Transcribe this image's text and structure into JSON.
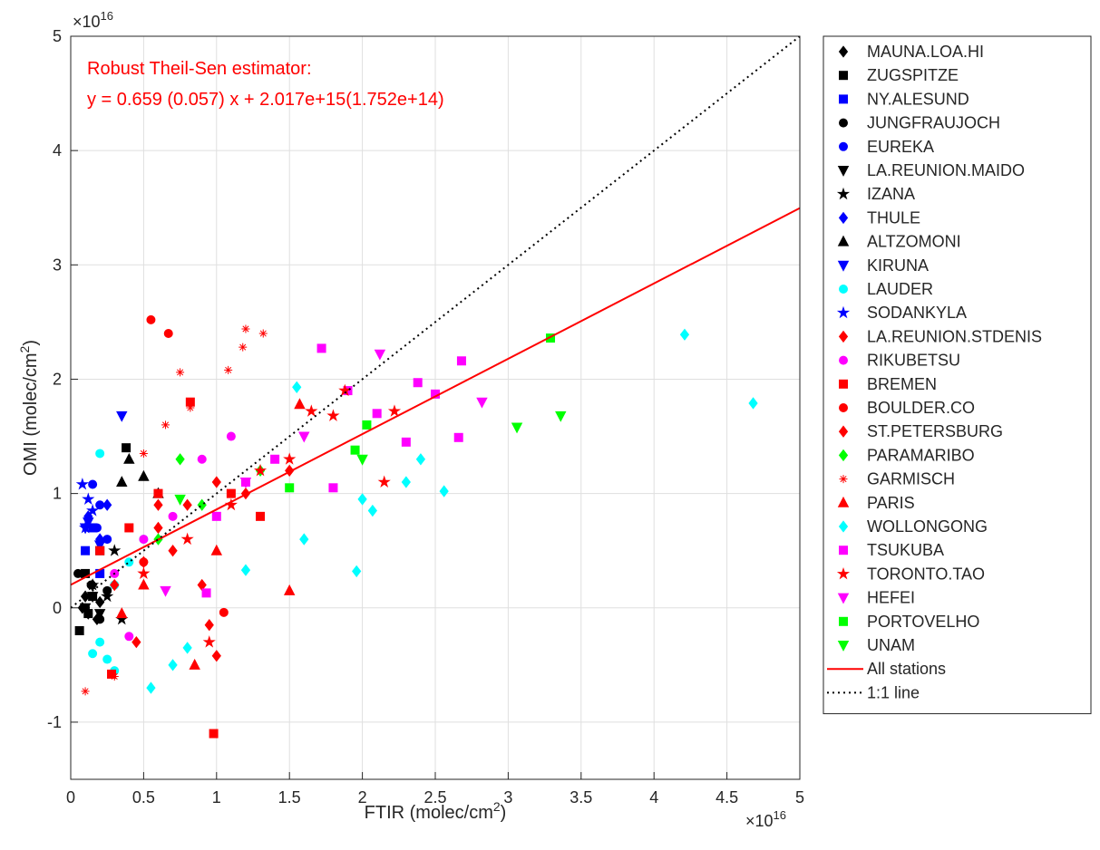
{
  "chart_data": {
    "type": "scatter",
    "xlabel": {
      "text": "FTIR (molec/cm",
      "sup": "2",
      "end": ")"
    },
    "ylabel": {
      "text": "OMI (molec/cm",
      "sup": "2",
      "end": ")"
    },
    "x_multiplier": {
      "base": "×10",
      "exponent": "16"
    },
    "y_multiplier": {
      "base": "×10",
      "exponent": "16"
    },
    "annotations": [
      "Robust Theil-Sen estimator:",
      "y = 0.659 (0.057) x + 2.017e+15(1.752e+14)"
    ],
    "annotation_color": "#ff0000",
    "xlim": [
      0,
      5
    ],
    "ylim": [
      -1.5,
      5
    ],
    "xticks": [
      0,
      0.5,
      1,
      1.5,
      2,
      2.5,
      3,
      3.5,
      4,
      4.5,
      5
    ],
    "yticks": [
      -1,
      0,
      1,
      2,
      3,
      4,
      5
    ],
    "grid": true,
    "legend": "east-outside",
    "series": [
      {
        "name": "MAUNA.LOA.HI",
        "marker": "diamond",
        "color": "#000000",
        "x": [
          0.1,
          0.12,
          0.15,
          0.2,
          0.08,
          0.18
        ],
        "y": [
          0.1,
          -0.05,
          0.2,
          0.05,
          0.0,
          -0.1
        ]
      },
      {
        "name": "ZUGSPITZE",
        "marker": "square",
        "color": "#000000",
        "x": [
          0.06,
          0.1,
          0.15,
          0.2,
          0.38,
          0.12
        ],
        "y": [
          -0.2,
          0.3,
          0.1,
          0.5,
          1.4,
          -0.05
        ]
      },
      {
        "name": "NY.ALESUND",
        "marker": "square",
        "color": "#0000ff",
        "x": [
          0.1,
          0.15,
          0.2
        ],
        "y": [
          0.5,
          0.7,
          0.3
        ]
      },
      {
        "name": "JUNGFRAUJOCH",
        "marker": "circle",
        "color": "#000000",
        "x": [
          0.05,
          0.1,
          0.14,
          0.2,
          0.25
        ],
        "y": [
          0.3,
          0.0,
          0.2,
          -0.1,
          0.15
        ]
      },
      {
        "name": "EUREKA",
        "marker": "circle",
        "color": "#0000ff",
        "x": [
          0.15,
          0.2,
          0.25,
          0.18
        ],
        "y": [
          1.08,
          0.9,
          0.6,
          0.7
        ]
      },
      {
        "name": "LA.REUNION.MAIDO",
        "marker": "triangle-down",
        "color": "#000000",
        "x": [
          0.1,
          0.15,
          0.2
        ],
        "y": [
          0.0,
          0.1,
          -0.05
        ]
      },
      {
        "name": "IZANA",
        "marker": "star",
        "color": "#000000",
        "x": [
          0.15,
          0.25,
          0.3,
          0.35
        ],
        "y": [
          0.2,
          0.1,
          0.5,
          -0.1
        ]
      },
      {
        "name": "THULE",
        "marker": "diamond",
        "color": "#0000ff",
        "x": [
          0.12,
          0.2,
          0.25
        ],
        "y": [
          0.8,
          0.6,
          0.9
        ]
      },
      {
        "name": "ALTZOMONI",
        "marker": "triangle-up",
        "color": "#000000",
        "x": [
          0.35,
          0.5,
          0.6,
          0.4
        ],
        "y": [
          1.1,
          1.15,
          1.0,
          1.3
        ]
      },
      {
        "name": "KIRUNA",
        "marker": "triangle-down",
        "color": "#0000ff",
        "x": [
          0.35,
          0.1,
          0.12,
          0.2
        ],
        "y": [
          1.68,
          0.7,
          0.75,
          0.55
        ]
      },
      {
        "name": "LAUDER",
        "marker": "circle",
        "color": "#00ffff",
        "x": [
          0.15,
          0.2,
          0.25,
          0.3,
          0.3,
          0.4,
          0.5,
          0.2
        ],
        "y": [
          -0.4,
          -0.3,
          -0.45,
          -0.55,
          0.2,
          0.4,
          0.6,
          1.35
        ]
      },
      {
        "name": "SODANKYLA",
        "marker": "star",
        "color": "#0000ff",
        "x": [
          0.08,
          0.12,
          0.1,
          0.15
        ],
        "y": [
          1.08,
          0.95,
          0.7,
          0.85
        ]
      },
      {
        "name": "LA.REUNION.STDENIS",
        "marker": "diamond",
        "color": "#ff0000",
        "x": [
          0.3,
          0.5,
          0.6,
          0.8,
          1.0,
          0.45,
          0.7
        ],
        "y": [
          0.2,
          0.4,
          0.7,
          0.9,
          1.1,
          -0.3,
          0.5
        ]
      },
      {
        "name": "RIKUBETSU",
        "marker": "circle",
        "color": "#ff00ff",
        "x": [
          0.3,
          0.5,
          0.7,
          0.9,
          1.1,
          0.4
        ],
        "y": [
          0.3,
          0.6,
          0.8,
          1.3,
          1.5,
          -0.25
        ]
      },
      {
        "name": "BREMEN",
        "marker": "square",
        "color": "#ff0000",
        "x": [
          0.2,
          0.4,
          0.6,
          0.82,
          0.98,
          0.28,
          1.1,
          1.3
        ],
        "y": [
          0.5,
          0.7,
          1.0,
          1.8,
          -1.1,
          -0.58,
          1.0,
          0.8
        ]
      },
      {
        "name": "BOULDER.CO",
        "marker": "circle",
        "color": "#ff0000",
        "x": [
          0.55,
          0.67,
          1.05,
          0.5
        ],
        "y": [
          2.52,
          2.4,
          -0.04,
          0.4
        ]
      },
      {
        "name": "ST.PETERSBURG",
        "marker": "diamond",
        "color": "#ff0000",
        "x": [
          0.6,
          0.9,
          0.95,
          1.0,
          1.5,
          1.2
        ],
        "y": [
          0.9,
          0.2,
          -0.15,
          -0.42,
          1.2,
          1.0
        ]
      },
      {
        "name": "PARAMARIBO",
        "marker": "diamond",
        "color": "#00ff00",
        "x": [
          0.6,
          0.75,
          0.9,
          1.3
        ],
        "y": [
          0.6,
          1.3,
          0.9,
          1.2
        ]
      },
      {
        "name": "GARMISCH",
        "marker": "asterisk",
        "color": "#ff0000",
        "x": [
          0.1,
          0.3,
          0.75,
          0.82,
          1.08,
          1.18,
          1.2,
          1.32,
          0.65,
          0.5
        ],
        "y": [
          -0.73,
          -0.6,
          2.06,
          1.75,
          2.08,
          2.28,
          2.44,
          2.4,
          1.6,
          1.35
        ]
      },
      {
        "name": "PARIS",
        "marker": "triangle-up",
        "color": "#ff0000",
        "x": [
          0.5,
          1.0,
          1.5,
          1.57,
          0.85,
          0.35
        ],
        "y": [
          0.2,
          0.5,
          0.15,
          1.78,
          -0.5,
          -0.05
        ]
      },
      {
        "name": "WOLLONGONG",
        "marker": "diamond",
        "color": "#00ffff",
        "x": [
          0.55,
          0.7,
          0.8,
          1.2,
          1.55,
          1.6,
          1.96,
          2.0,
          2.07,
          2.3,
          2.4,
          2.56,
          4.21,
          4.68
        ],
        "y": [
          -0.7,
          -0.5,
          -0.35,
          0.33,
          1.93,
          0.6,
          0.32,
          0.95,
          0.85,
          1.1,
          1.3,
          1.02,
          2.39,
          1.79
        ]
      },
      {
        "name": "TSUKUBA",
        "marker": "square",
        "color": "#ff00ff",
        "x": [
          1.0,
          1.2,
          1.4,
          1.72,
          1.9,
          2.1,
          2.3,
          2.38,
          2.5,
          2.66,
          2.68,
          0.93,
          1.8
        ],
        "y": [
          0.8,
          1.1,
          1.3,
          2.27,
          1.9,
          1.7,
          1.45,
          1.97,
          1.87,
          1.49,
          2.16,
          0.13,
          1.05
        ]
      },
      {
        "name": "TORONTO.TAO",
        "marker": "star",
        "color": "#ff0000",
        "x": [
          0.5,
          0.8,
          1.1,
          1.3,
          1.5,
          1.65,
          1.8,
          1.88,
          2.15,
          0.95,
          2.22
        ],
        "y": [
          0.3,
          0.6,
          0.9,
          1.2,
          1.3,
          1.72,
          1.68,
          1.9,
          1.1,
          -0.3,
          1.72
        ]
      },
      {
        "name": "HEFEI",
        "marker": "triangle-down",
        "color": "#ff00ff",
        "x": [
          0.65,
          2.12,
          2.82,
          1.6,
          1.2
        ],
        "y": [
          0.15,
          2.22,
          1.8,
          1.5,
          1.1
        ]
      },
      {
        "name": "PORTOVELHO",
        "marker": "square",
        "color": "#00ff00",
        "x": [
          3.29,
          2.03,
          1.95,
          1.5
        ],
        "y": [
          2.36,
          1.6,
          1.38,
          1.05
        ]
      },
      {
        "name": "UNAM",
        "marker": "triangle-down",
        "color": "#00ff00",
        "x": [
          3.06,
          3.36,
          2.0,
          0.75
        ],
        "y": [
          1.58,
          1.68,
          1.3,
          0.95
        ]
      }
    ],
    "fit_lines": [
      {
        "name": "All stations",
        "color": "#ff0000",
        "dash": "solid",
        "slope": 0.659,
        "intercept": 0.2017
      },
      {
        "name": "1:1 line",
        "color": "#000000",
        "dash": "dotted",
        "slope": 1,
        "intercept": 0
      }
    ]
  }
}
